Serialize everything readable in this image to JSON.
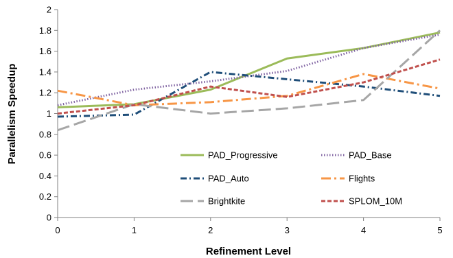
{
  "chart_data": {
    "type": "line",
    "xlabel": "Refinement Level",
    "ylabel": "Parallelism Speedup",
    "x": [
      0,
      1,
      2,
      3,
      4,
      5
    ],
    "xlim": [
      0,
      5
    ],
    "ylim": [
      0,
      2
    ],
    "x_ticks": [
      "0",
      "1",
      "2",
      "3",
      "4",
      "5"
    ],
    "y_ticks": [
      "0",
      "0.2",
      "0.4",
      "0.6",
      "0.8",
      "1",
      "1.2",
      "1.4",
      "1.6",
      "1.8",
      "2"
    ],
    "grid": false,
    "legend_position": "bottom-right",
    "series": [
      {
        "name": "PAD_Progressive",
        "values": [
          1.06,
          1.09,
          1.23,
          1.53,
          1.63,
          1.78
        ],
        "color": "#9bbb59",
        "style": "solid"
      },
      {
        "name": "PAD_Base",
        "values": [
          1.08,
          1.23,
          1.31,
          1.41,
          1.63,
          1.76
        ],
        "color": "#8064a2",
        "style": "dotted"
      },
      {
        "name": "PAD_Auto",
        "values": [
          0.97,
          0.99,
          1.4,
          1.33,
          1.26,
          1.17
        ],
        "color": "#1f4e79",
        "style": "dashdot"
      },
      {
        "name": "Flights",
        "values": [
          1.22,
          1.08,
          1.11,
          1.17,
          1.38,
          1.24
        ],
        "color": "#f79646",
        "style": "longdashdot"
      },
      {
        "name": "Brightkite",
        "values": [
          0.84,
          1.09,
          1.0,
          1.05,
          1.13,
          1.8
        ],
        "color": "#a6a6a6",
        "style": "longdash"
      },
      {
        "name": "SPLOM_10M",
        "values": [
          1.0,
          1.08,
          1.26,
          1.16,
          1.3,
          1.52
        ],
        "color": "#c0504d",
        "style": "dashed"
      }
    ]
  }
}
